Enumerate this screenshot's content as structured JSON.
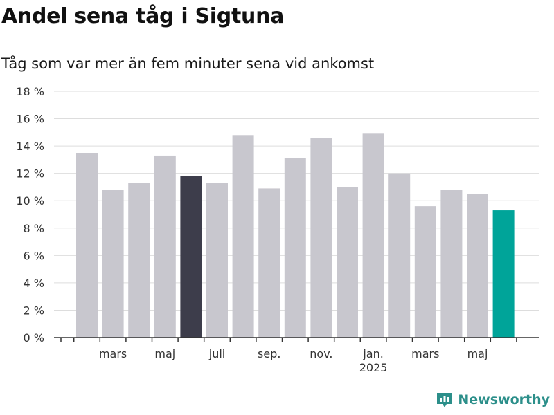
{
  "header": {
    "title": "Andel sena tåg i Sigtuna",
    "subtitle": "Tåg som var mer än fem minuter sena vid ankomst"
  },
  "brand": {
    "name": "Newsworthy",
    "icon": "newsworthy-logo-icon"
  },
  "colors": {
    "bar": "#c8c7ce",
    "highlight": "#3d3d4b",
    "latest": "#00a499",
    "grid": "#dddddd",
    "axis": "#333333"
  },
  "chart_data": {
    "type": "bar",
    "title": "Andel sena tåg i Sigtuna",
    "subtitle": "Tåg som var mer än fem minuter sena vid ankomst",
    "xlabel": "",
    "ylabel": "",
    "ylim": [
      0,
      18
    ],
    "yticks": [
      0,
      2,
      4,
      6,
      8,
      10,
      12,
      14,
      16,
      18
    ],
    "ytick_labels": [
      "0 %",
      "2 %",
      "4 %",
      "6 %",
      "8 %",
      "10 %",
      "12 %",
      "14 %",
      "16 %",
      "18 %"
    ],
    "grid": true,
    "categories": [
      "2024-02",
      "2024-03",
      "2024-04",
      "2024-05",
      "2024-06",
      "2024-07",
      "2024-08",
      "2024-09",
      "2024-10",
      "2024-11",
      "2024-12",
      "2025-01",
      "2025-02",
      "2025-03",
      "2025-04",
      "2025-05",
      "2025-06"
    ],
    "values": [
      13.5,
      10.8,
      11.3,
      13.3,
      11.8,
      11.3,
      14.8,
      10.9,
      13.1,
      14.6,
      11.0,
      14.9,
      12.0,
      9.6,
      10.8,
      10.5,
      9.3
    ],
    "bar_roles": [
      "normal",
      "normal",
      "normal",
      "normal",
      "highlight",
      "normal",
      "normal",
      "normal",
      "normal",
      "normal",
      "normal",
      "normal",
      "normal",
      "normal",
      "normal",
      "normal",
      "latest"
    ],
    "x_tick_labels": [
      {
        "index": 1,
        "label": "mars"
      },
      {
        "index": 3,
        "label": "maj"
      },
      {
        "index": 5,
        "label": "juli"
      },
      {
        "index": 7,
        "label": "sep."
      },
      {
        "index": 9,
        "label": "nov."
      },
      {
        "index": 11,
        "label": "jan.",
        "sublabel": "2025"
      },
      {
        "index": 13,
        "label": "mars"
      },
      {
        "index": 15,
        "label": "maj"
      }
    ]
  }
}
